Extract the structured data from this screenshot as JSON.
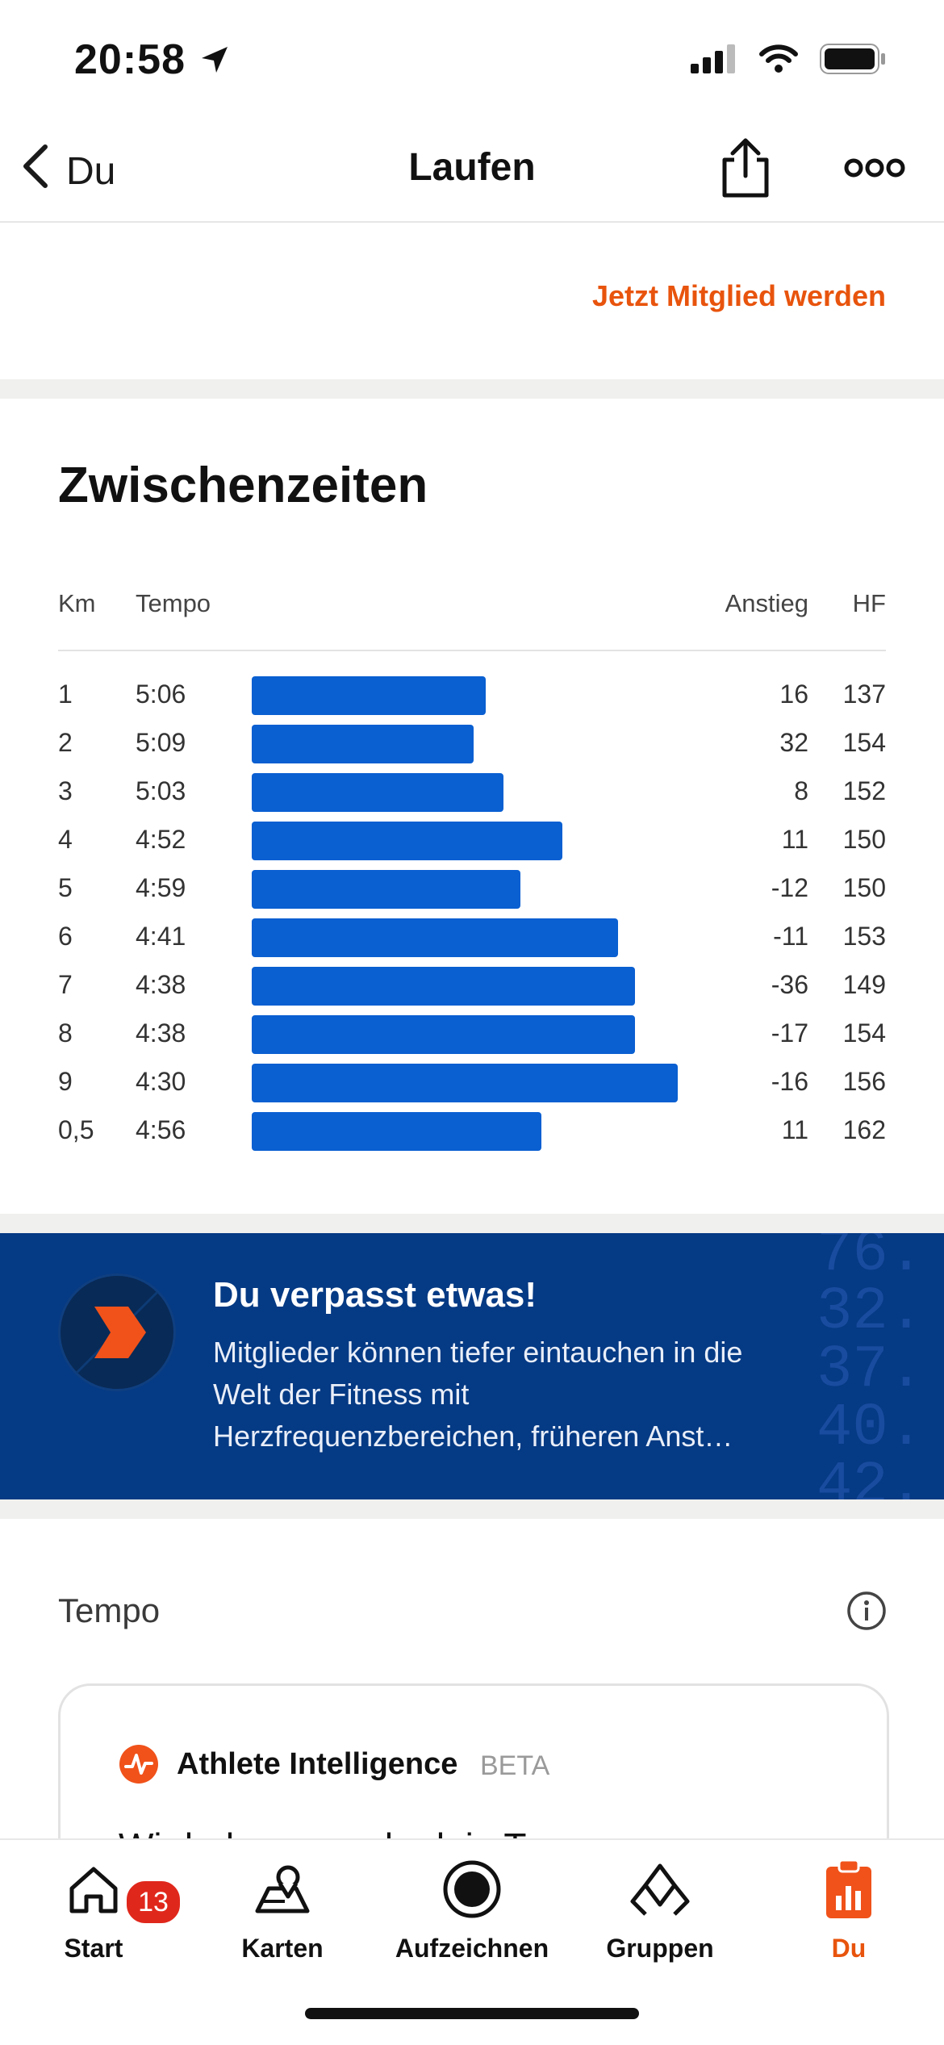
{
  "status_bar": {
    "time": "20:58"
  },
  "nav": {
    "back_label": "Du",
    "title": "Laufen"
  },
  "promo": {
    "link": "Jetzt Mitglied werden"
  },
  "splits": {
    "title": "Zwischenzeiten",
    "headers": {
      "km": "Km",
      "pace": "Tempo",
      "elev": "Anstieg",
      "hr": "HF"
    },
    "bar_color": "#0a5fd1",
    "rows": [
      {
        "km": "1",
        "pace": "5:06",
        "speed_pct": 55,
        "elev": "16",
        "hr": "137"
      },
      {
        "km": "2",
        "pace": "5:09",
        "speed_pct": 52,
        "elev": "32",
        "hr": "154"
      },
      {
        "km": "3",
        "pace": "5:03",
        "speed_pct": 59,
        "elev": "8",
        "hr": "152"
      },
      {
        "km": "4",
        "pace": "4:52",
        "speed_pct": 73,
        "elev": "11",
        "hr": "150"
      },
      {
        "km": "5",
        "pace": "4:59",
        "speed_pct": 63,
        "elev": "-12",
        "hr": "150"
      },
      {
        "km": "6",
        "pace": "4:41",
        "speed_pct": 86,
        "elev": "-11",
        "hr": "153"
      },
      {
        "km": "7",
        "pace": "4:38",
        "speed_pct": 90,
        "elev": "-36",
        "hr": "149"
      },
      {
        "km": "8",
        "pace": "4:38",
        "speed_pct": 90,
        "elev": "-17",
        "hr": "154"
      },
      {
        "km": "9",
        "pace": "4:30",
        "speed_pct": 100,
        "elev": "-16",
        "hr": "156"
      },
      {
        "km": "0,5",
        "pace": "4:56",
        "speed_pct": 68,
        "elev": "11",
        "hr": "162"
      }
    ]
  },
  "banner": {
    "title": "Du verpasst etwas!",
    "text": "Mitglieder können tiefer eintauchen in die Welt der Fitness mit Herzfrequenzbereichen, früheren Anst…",
    "bg_digits": "76.\n32.\n37.\n40.\n42."
  },
  "tempo_section": {
    "label": "Tempo"
  },
  "athlete_intelligence": {
    "title": "Athlete Intelligence",
    "badge": "BETA",
    "text": "Wir haben gerade dein Tempo"
  },
  "tabbar": {
    "badge_count": "13",
    "tabs": [
      {
        "label": "Start",
        "icon": "home-icon"
      },
      {
        "label": "Karten",
        "icon": "map-icon"
      },
      {
        "label": "Aufzeichnen",
        "icon": "record-icon"
      },
      {
        "label": "Gruppen",
        "icon": "groups-icon"
      },
      {
        "label": "Du",
        "icon": "you-icon",
        "active": true
      }
    ]
  },
  "colors": {
    "accent": "#e8540d",
    "banner_bg": "#053a84"
  }
}
